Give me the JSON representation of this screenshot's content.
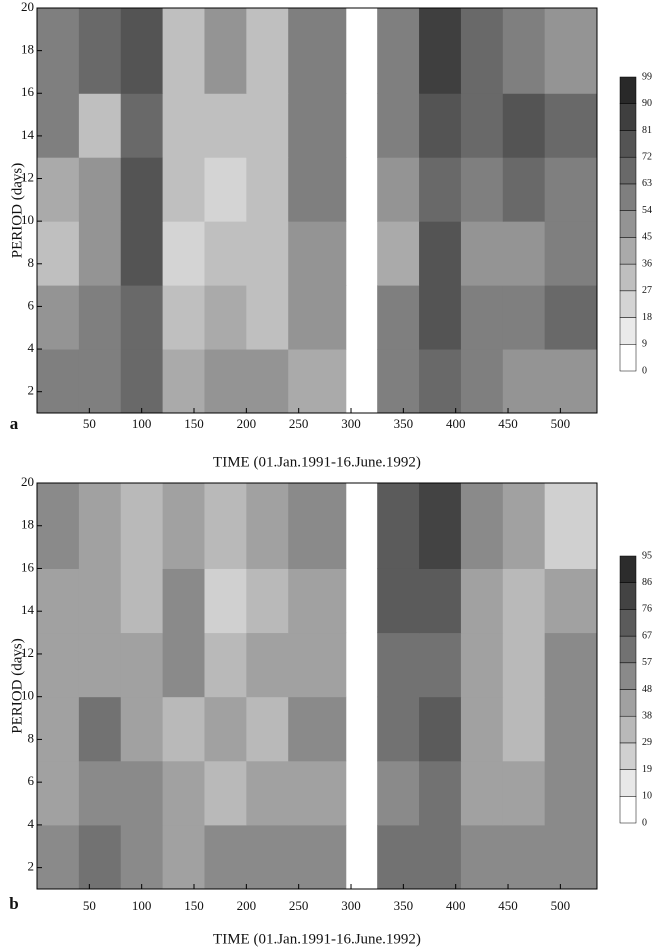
{
  "chart_data": [
    {
      "type": "heatmap",
      "panel_label": "a",
      "xlabel": "TIME  (01.Jan.1991-16.June.1992)",
      "ylabel": "PERIOD  (days)",
      "xlim": [
        0,
        535
      ],
      "ylim": [
        1,
        20
      ],
      "xticks": [
        50,
        100,
        150,
        200,
        250,
        300,
        350,
        400,
        450,
        500
      ],
      "yticks": [
        2,
        4,
        6,
        8,
        10,
        12,
        14,
        16,
        18,
        20
      ],
      "x_edges": [
        0,
        40,
        80,
        120,
        160,
        200,
        240,
        295,
        325,
        365,
        405,
        445,
        485,
        535
      ],
      "y_edges": [
        1,
        4,
        7,
        10,
        13,
        16,
        20
      ],
      "z": [
        [
          60,
          55,
          65,
          40,
          45,
          50,
          40,
          null,
          60,
          70,
          55,
          50,
          45
        ],
        [
          45,
          55,
          70,
          30,
          40,
          35,
          45,
          null,
          55,
          75,
          60,
          55,
          65
        ],
        [
          35,
          50,
          80,
          25,
          35,
          30,
          50,
          null,
          40,
          80,
          45,
          50,
          60
        ],
        [
          40,
          45,
          75,
          30,
          25,
          35,
          55,
          null,
          45,
          70,
          55,
          70,
          55
        ],
        [
          55,
          35,
          70,
          30,
          35,
          30,
          60,
          null,
          60,
          80,
          65,
          75,
          70
        ],
        [
          60,
          70,
          80,
          35,
          45,
          35,
          55,
          null,
          55,
          85,
          70,
          60,
          45
        ]
      ],
      "colorbar_levels": [
        0,
        9,
        18,
        27,
        36,
        45,
        54,
        63,
        72,
        81,
        90,
        99
      ]
    },
    {
      "type": "heatmap",
      "panel_label": "b",
      "xlabel": "TIME  (01.Jan.1991-16.June.1992)",
      "ylabel": "PERIOD  (days)",
      "xlim": [
        0,
        535
      ],
      "ylim": [
        1,
        20
      ],
      "xticks": [
        50,
        100,
        150,
        200,
        250,
        300,
        350,
        400,
        450,
        500
      ],
      "yticks": [
        2,
        4,
        6,
        8,
        10,
        12,
        14,
        16,
        18,
        20
      ],
      "x_edges": [
        0,
        40,
        80,
        120,
        160,
        200,
        240,
        295,
        325,
        365,
        405,
        445,
        485,
        535
      ],
      "y_edges": [
        1,
        4,
        7,
        10,
        13,
        16,
        20
      ],
      "z": [
        [
          55,
          60,
          50,
          45,
          50,
          55,
          50,
          null,
          65,
          60,
          50,
          55,
          50
        ],
        [
          40,
          55,
          50,
          40,
          35,
          45,
          45,
          null,
          50,
          65,
          45,
          40,
          50
        ],
        [
          45,
          60,
          45,
          30,
          40,
          35,
          50,
          null,
          60,
          70,
          40,
          30,
          55
        ],
        [
          40,
          45,
          40,
          50,
          30,
          40,
          45,
          null,
          65,
          65,
          40,
          35,
          50
        ],
        [
          45,
          40,
          35,
          50,
          25,
          35,
          40,
          null,
          70,
          75,
          45,
          30,
          45
        ],
        [
          50,
          45,
          30,
          40,
          30,
          40,
          50,
          null,
          75,
          80,
          55,
          45,
          25
        ]
      ],
      "colorbar_levels": [
        0,
        10,
        19,
        29,
        38,
        48,
        57,
        67,
        76,
        86,
        95
      ]
    }
  ]
}
